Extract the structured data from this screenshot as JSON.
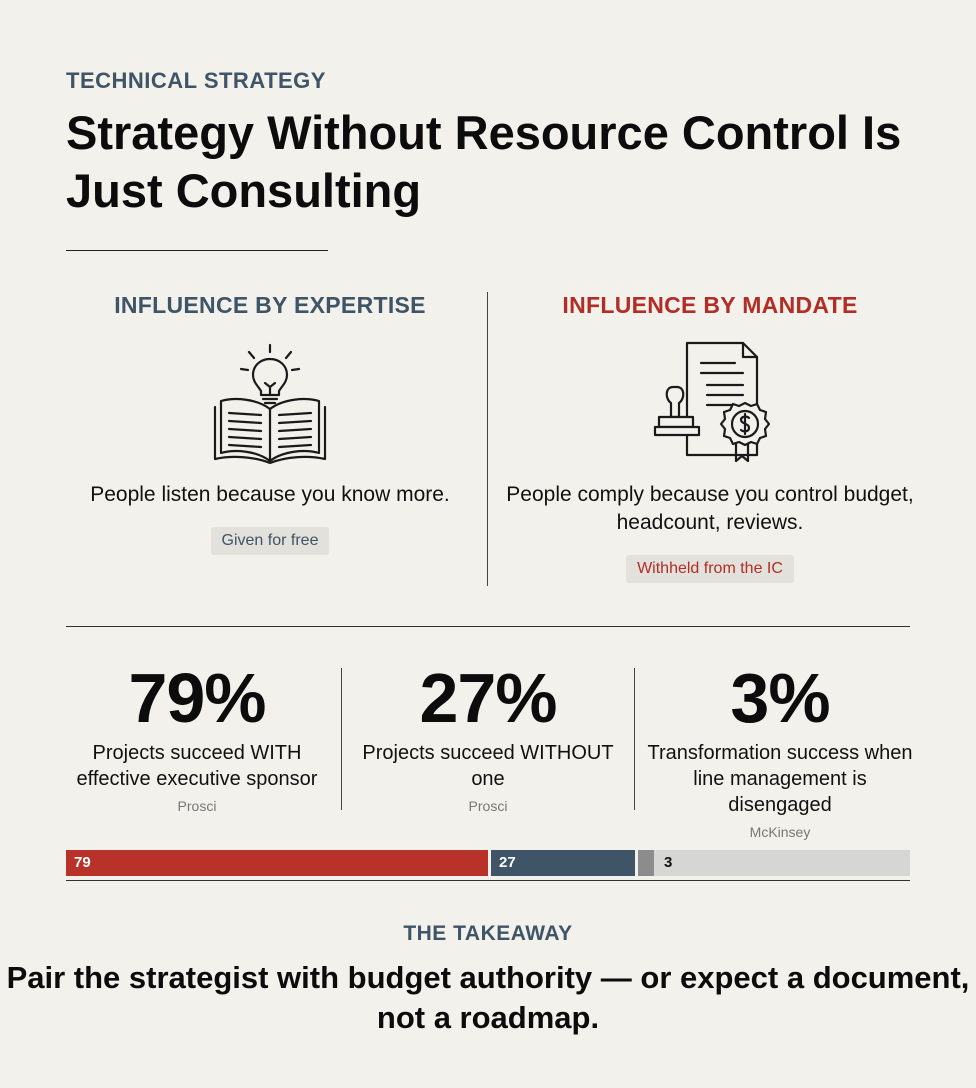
{
  "header": {
    "eyebrow": "TECHNICAL STRATEGY",
    "title": "Strategy Without Resource Control Is Just Consulting"
  },
  "comparison": {
    "left": {
      "heading": "INFLUENCE BY EXPERTISE",
      "icon": "book-lightbulb-icon",
      "text": "People listen because you know more.",
      "tag": "Given for free"
    },
    "right": {
      "heading": "INFLUENCE BY MANDATE",
      "icon": "stamp-contract-icon",
      "text": "People comply because you control budget, headcount, reviews.",
      "tag": "Withheld from the IC"
    }
  },
  "stats": [
    {
      "value": "79%",
      "description": "Projects succeed WITH effective executive sponsor",
      "source": "Prosci"
    },
    {
      "value": "27%",
      "description": "Projects succeed WITHOUT one",
      "source": "Prosci"
    },
    {
      "value": "3%",
      "description": "Transformation success when line management is disengaged",
      "source": "McKinsey"
    }
  ],
  "chart_data": {
    "type": "bar",
    "orientation": "horizontal-stacked",
    "categories": [
      "79",
      "27",
      "3"
    ],
    "values": [
      79,
      27,
      3
    ],
    "colors": [
      "#b8322a",
      "#3f5466",
      "#8c8c8c"
    ],
    "remainder_color": "#d6d6d4"
  },
  "takeaway": {
    "heading": "THE TAKEAWAY",
    "text": "Pair the strategist with budget authority — or expect a document, not a roadmap."
  },
  "colors": {
    "accent_red": "#b22d25",
    "slate": "#3f5466",
    "background": "#f2f1ec"
  }
}
